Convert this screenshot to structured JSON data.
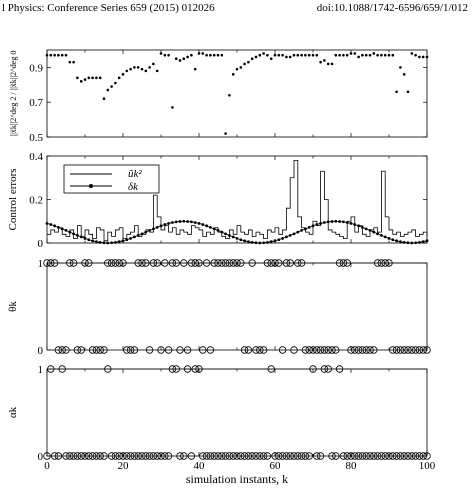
{
  "header": {
    "journal": "l Physics: Conference Series 659 (2015) 012026",
    "doi": "doi:10.1088/1742-6596/659/1/012"
  },
  "chart_data": [
    {
      "type": "scatter",
      "ylabel": "||x̃k||2^deg 2 / ||x̃k||2^deg 0",
      "xlim": [
        0,
        100
      ],
      "ylim": [
        0.5,
        1.0
      ],
      "yticks": [
        0.5,
        0.7,
        0.9
      ],
      "ytick_labels": [
        "0.5",
        "0.7",
        "0.9"
      ],
      "x": [
        0,
        1,
        2,
        3,
        4,
        5,
        6,
        7,
        8,
        9,
        10,
        11,
        12,
        13,
        14,
        15,
        16,
        17,
        18,
        19,
        20,
        21,
        22,
        23,
        24,
        25,
        26,
        27,
        28,
        29,
        30,
        31,
        32,
        33,
        34,
        35,
        36,
        37,
        38,
        39,
        40,
        41,
        42,
        43,
        44,
        45,
        46,
        47,
        48,
        49,
        50,
        51,
        52,
        53,
        54,
        55,
        56,
        57,
        58,
        59,
        60,
        61,
        62,
        63,
        64,
        65,
        66,
        67,
        68,
        69,
        70,
        71,
        72,
        73,
        74,
        75,
        76,
        77,
        78,
        79,
        80,
        81,
        82,
        83,
        84,
        85,
        86,
        87,
        88,
        89,
        90,
        91,
        92,
        93,
        94,
        95,
        96,
        97,
        98,
        99,
        100
      ],
      "values": [
        0.97,
        0.97,
        0.97,
        0.97,
        0.97,
        0.97,
        0.93,
        0.93,
        0.84,
        0.82,
        0.83,
        0.84,
        0.84,
        0.84,
        0.84,
        0.72,
        0.77,
        0.79,
        0.81,
        0.84,
        0.86,
        0.88,
        0.89,
        0.9,
        0.9,
        0.89,
        0.88,
        0.9,
        0.92,
        0.88,
        0.98,
        0.97,
        0.97,
        0.67,
        0.95,
        0.94,
        0.95,
        0.96,
        0.97,
        0.89,
        0.98,
        0.98,
        0.97,
        0.97,
        0.97,
        0.97,
        0.97,
        0.52,
        0.74,
        0.86,
        0.89,
        0.9,
        0.92,
        0.93,
        0.95,
        0.96,
        0.97,
        0.98,
        0.97,
        0.95,
        0.97,
        0.97,
        0.97,
        0.96,
        0.96,
        0.97,
        0.97,
        0.97,
        0.97,
        0.97,
        0.97,
        0.97,
        0.93,
        0.94,
        0.92,
        0.92,
        0.97,
        0.97,
        0.97,
        0.97,
        0.98,
        0.98,
        0.96,
        0.97,
        0.97,
        0.97,
        0.98,
        0.97,
        0.97,
        0.97,
        0.97,
        0.97,
        0.76,
        0.9,
        0.86,
        0.76,
        0.98,
        0.97,
        0.96,
        0.96,
        0.96
      ]
    },
    {
      "type": "line",
      "ylabel": "Control errors",
      "xlim": [
        0,
        100
      ],
      "ylim": [
        0,
        0.4
      ],
      "yticks": [
        0,
        0.2,
        0.4
      ],
      "ytick_labels": [
        "0",
        "0.2",
        "0.4"
      ],
      "legend_position": "top-left",
      "x": [
        0,
        1,
        2,
        3,
        4,
        5,
        6,
        7,
        8,
        9,
        10,
        11,
        12,
        13,
        14,
        15,
        16,
        17,
        18,
        19,
        20,
        21,
        22,
        23,
        24,
        25,
        26,
        27,
        28,
        29,
        30,
        31,
        32,
        33,
        34,
        35,
        36,
        37,
        38,
        39,
        40,
        41,
        42,
        43,
        44,
        45,
        46,
        47,
        48,
        49,
        50,
        51,
        52,
        53,
        54,
        55,
        56,
        57,
        58,
        59,
        60,
        61,
        62,
        63,
        64,
        65,
        66,
        67,
        68,
        69,
        70,
        71,
        72,
        73,
        74,
        75,
        76,
        77,
        78,
        79,
        80,
        81,
        82,
        83,
        84,
        85,
        86,
        87,
        88,
        89,
        90,
        91,
        92,
        93,
        94,
        95,
        96,
        97,
        98,
        99,
        100
      ],
      "series": [
        {
          "name": "ũk²",
          "style": "step",
          "values": [
            0.04,
            0.06,
            0.05,
            0.07,
            0.04,
            0.03,
            0.06,
            0.02,
            0.08,
            0.03,
            0.06,
            0.04,
            0.02,
            0.07,
            0.06,
            0.01,
            0.05,
            0.03,
            0.06,
            0.07,
            0.02,
            0.04,
            0.05,
            0.08,
            0.03,
            0.04,
            0.06,
            0.05,
            0.22,
            0.12,
            0.06,
            0.08,
            0.05,
            0.07,
            0.04,
            0.06,
            0.05,
            0.04,
            0.08,
            0.07,
            0.06,
            0.03,
            0.05,
            0.04,
            0.07,
            0.05,
            0.03,
            0.02,
            0.06,
            0.04,
            0.08,
            0.05,
            0.04,
            0.06,
            0.03,
            0.05,
            0.04,
            0.02,
            0.06,
            0.05,
            0.07,
            0.04,
            0.06,
            0.16,
            0.3,
            0.38,
            0.12,
            0.07,
            0.05,
            0.04,
            0.1,
            0.08,
            0.33,
            0.2,
            0.06,
            0.05,
            0.04,
            0.03,
            0.02,
            0.1,
            0.12,
            0.05,
            0.08,
            0.04,
            0.03,
            0.06,
            0.07,
            0.05,
            0.33,
            0.12,
            0.06,
            0.04,
            0.05,
            0.03,
            0.04,
            0.05,
            0.06,
            0.03,
            0.04,
            0.05,
            0.03
          ]
        },
        {
          "name": "δk",
          "style": "line-markers",
          "amplitude": 0.1,
          "period": 36,
          "values": [
            0.09,
            0.085,
            0.079,
            0.072,
            0.065,
            0.058,
            0.05,
            0.042,
            0.035,
            0.028,
            0.021,
            0.015,
            0.01,
            0.006,
            0.003,
            0.001,
            0.0,
            0.001,
            0.003,
            0.006,
            0.01,
            0.015,
            0.021,
            0.028,
            0.035,
            0.042,
            0.05,
            0.058,
            0.065,
            0.072,
            0.079,
            0.085,
            0.09,
            0.094,
            0.097,
            0.099,
            0.1,
            0.099,
            0.097,
            0.094,
            0.09,
            0.085,
            0.079,
            0.072,
            0.065,
            0.058,
            0.05,
            0.042,
            0.035,
            0.028,
            0.021,
            0.015,
            0.01,
            0.006,
            0.003,
            0.001,
            0.0,
            0.001,
            0.003,
            0.006,
            0.01,
            0.015,
            0.021,
            0.028,
            0.035,
            0.042,
            0.05,
            0.058,
            0.065,
            0.072,
            0.079,
            0.085,
            0.09,
            0.094,
            0.097,
            0.099,
            0.1,
            0.099,
            0.097,
            0.094,
            0.09,
            0.085,
            0.079,
            0.072,
            0.065,
            0.058,
            0.05,
            0.042,
            0.035,
            0.028,
            0.021,
            0.015,
            0.01,
            0.006,
            0.003,
            0.001,
            0.0,
            0.001,
            0.003,
            0.006,
            0.01
          ]
        }
      ]
    },
    {
      "type": "scatter",
      "ylabel": "θk",
      "xlim": [
        0,
        100
      ],
      "ylim": [
        0,
        1
      ],
      "yticks": [
        0,
        1
      ],
      "ytick_labels": [
        "0",
        "1"
      ],
      "marker": "open-circle",
      "x": [
        0,
        1,
        2,
        3,
        4,
        5,
        6,
        7,
        8,
        9,
        10,
        11,
        12,
        13,
        14,
        15,
        16,
        17,
        18,
        19,
        20,
        21,
        22,
        23,
        24,
        25,
        26,
        27,
        28,
        29,
        30,
        31,
        32,
        33,
        34,
        35,
        36,
        37,
        38,
        39,
        40,
        41,
        42,
        43,
        44,
        45,
        46,
        47,
        48,
        49,
        50,
        51,
        52,
        53,
        54,
        55,
        56,
        57,
        58,
        59,
        60,
        61,
        62,
        63,
        64,
        65,
        66,
        67,
        68,
        69,
        70,
        71,
        72,
        73,
        74,
        75,
        76,
        77,
        78,
        79,
        80,
        81,
        82,
        83,
        84,
        85,
        86,
        87,
        88,
        89,
        90,
        91,
        92,
        93,
        94,
        95,
        96,
        97,
        98,
        99,
        100
      ],
      "values": [
        1,
        1,
        1,
        0,
        0,
        0,
        1,
        1,
        0,
        0,
        1,
        1,
        0,
        0,
        0,
        0,
        1,
        1,
        1,
        1,
        1,
        0,
        0,
        0,
        1,
        1,
        1,
        0,
        1,
        1,
        0,
        1,
        0,
        1,
        1,
        0,
        1,
        0,
        1,
        1,
        1,
        0,
        1,
        0,
        1,
        1,
        1,
        1,
        1,
        1,
        1,
        1,
        0,
        0,
        1,
        0,
        0,
        0,
        1,
        1,
        1,
        1,
        0,
        1,
        1,
        0,
        1,
        1,
        0,
        0,
        0,
        0,
        0,
        0,
        0,
        0,
        0,
        1,
        1,
        1,
        0,
        0,
        0,
        0,
        0,
        0,
        0,
        1,
        1,
        1,
        1,
        0,
        0,
        0,
        0,
        0,
        0,
        0,
        0,
        0,
        0
      ]
    },
    {
      "type": "scatter",
      "ylabel": "αk",
      "xlabel": "simulation instants, k",
      "xlim": [
        0,
        100
      ],
      "ylim": [
        0,
        1
      ],
      "yticks": [
        0,
        1
      ],
      "ytick_labels": [
        "0",
        "1"
      ],
      "xticks": [
        0,
        20,
        40,
        60,
        80,
        100
      ],
      "xtick_labels": [
        "0",
        "20",
        "40",
        "60",
        "80",
        "100"
      ],
      "marker": "open-circle",
      "x": [
        0,
        1,
        2,
        3,
        4,
        5,
        6,
        7,
        8,
        9,
        10,
        11,
        12,
        13,
        14,
        15,
        16,
        17,
        18,
        19,
        20,
        21,
        22,
        23,
        24,
        25,
        26,
        27,
        28,
        29,
        30,
        31,
        32,
        33,
        34,
        35,
        36,
        37,
        38,
        39,
        40,
        41,
        42,
        43,
        44,
        45,
        46,
        47,
        48,
        49,
        50,
        51,
        52,
        53,
        54,
        55,
        56,
        57,
        58,
        59,
        60,
        61,
        62,
        63,
        64,
        65,
        66,
        67,
        68,
        69,
        70,
        71,
        72,
        73,
        74,
        75,
        76,
        77,
        78,
        79,
        80,
        81,
        82,
        83,
        84,
        85,
        86,
        87,
        88,
        89,
        90,
        91,
        92,
        93,
        94,
        95,
        96,
        97,
        98,
        99,
        100
      ],
      "values": [
        0,
        1,
        0,
        0,
        1,
        0,
        0,
        0,
        0,
        0,
        0,
        0,
        0,
        0,
        0,
        0,
        1,
        0,
        0,
        0,
        0,
        0,
        0,
        0,
        0,
        0,
        0,
        0,
        0,
        0,
        0,
        0,
        0,
        1,
        1,
        0,
        0,
        1,
        0,
        1,
        1,
        0,
        0,
        0,
        0,
        0,
        0,
        0,
        0,
        0,
        0,
        0,
        0,
        0,
        0,
        0,
        0,
        0,
        0,
        1,
        0,
        0,
        0,
        0,
        0,
        0,
        0,
        0,
        0,
        0,
        1,
        0,
        0,
        1,
        1,
        0,
        0,
        1,
        0,
        0,
        0,
        0,
        0,
        0,
        0,
        0,
        0,
        0,
        0,
        0,
        0,
        0,
        0,
        0,
        0,
        0,
        0,
        0,
        0,
        0,
        0
      ]
    }
  ]
}
